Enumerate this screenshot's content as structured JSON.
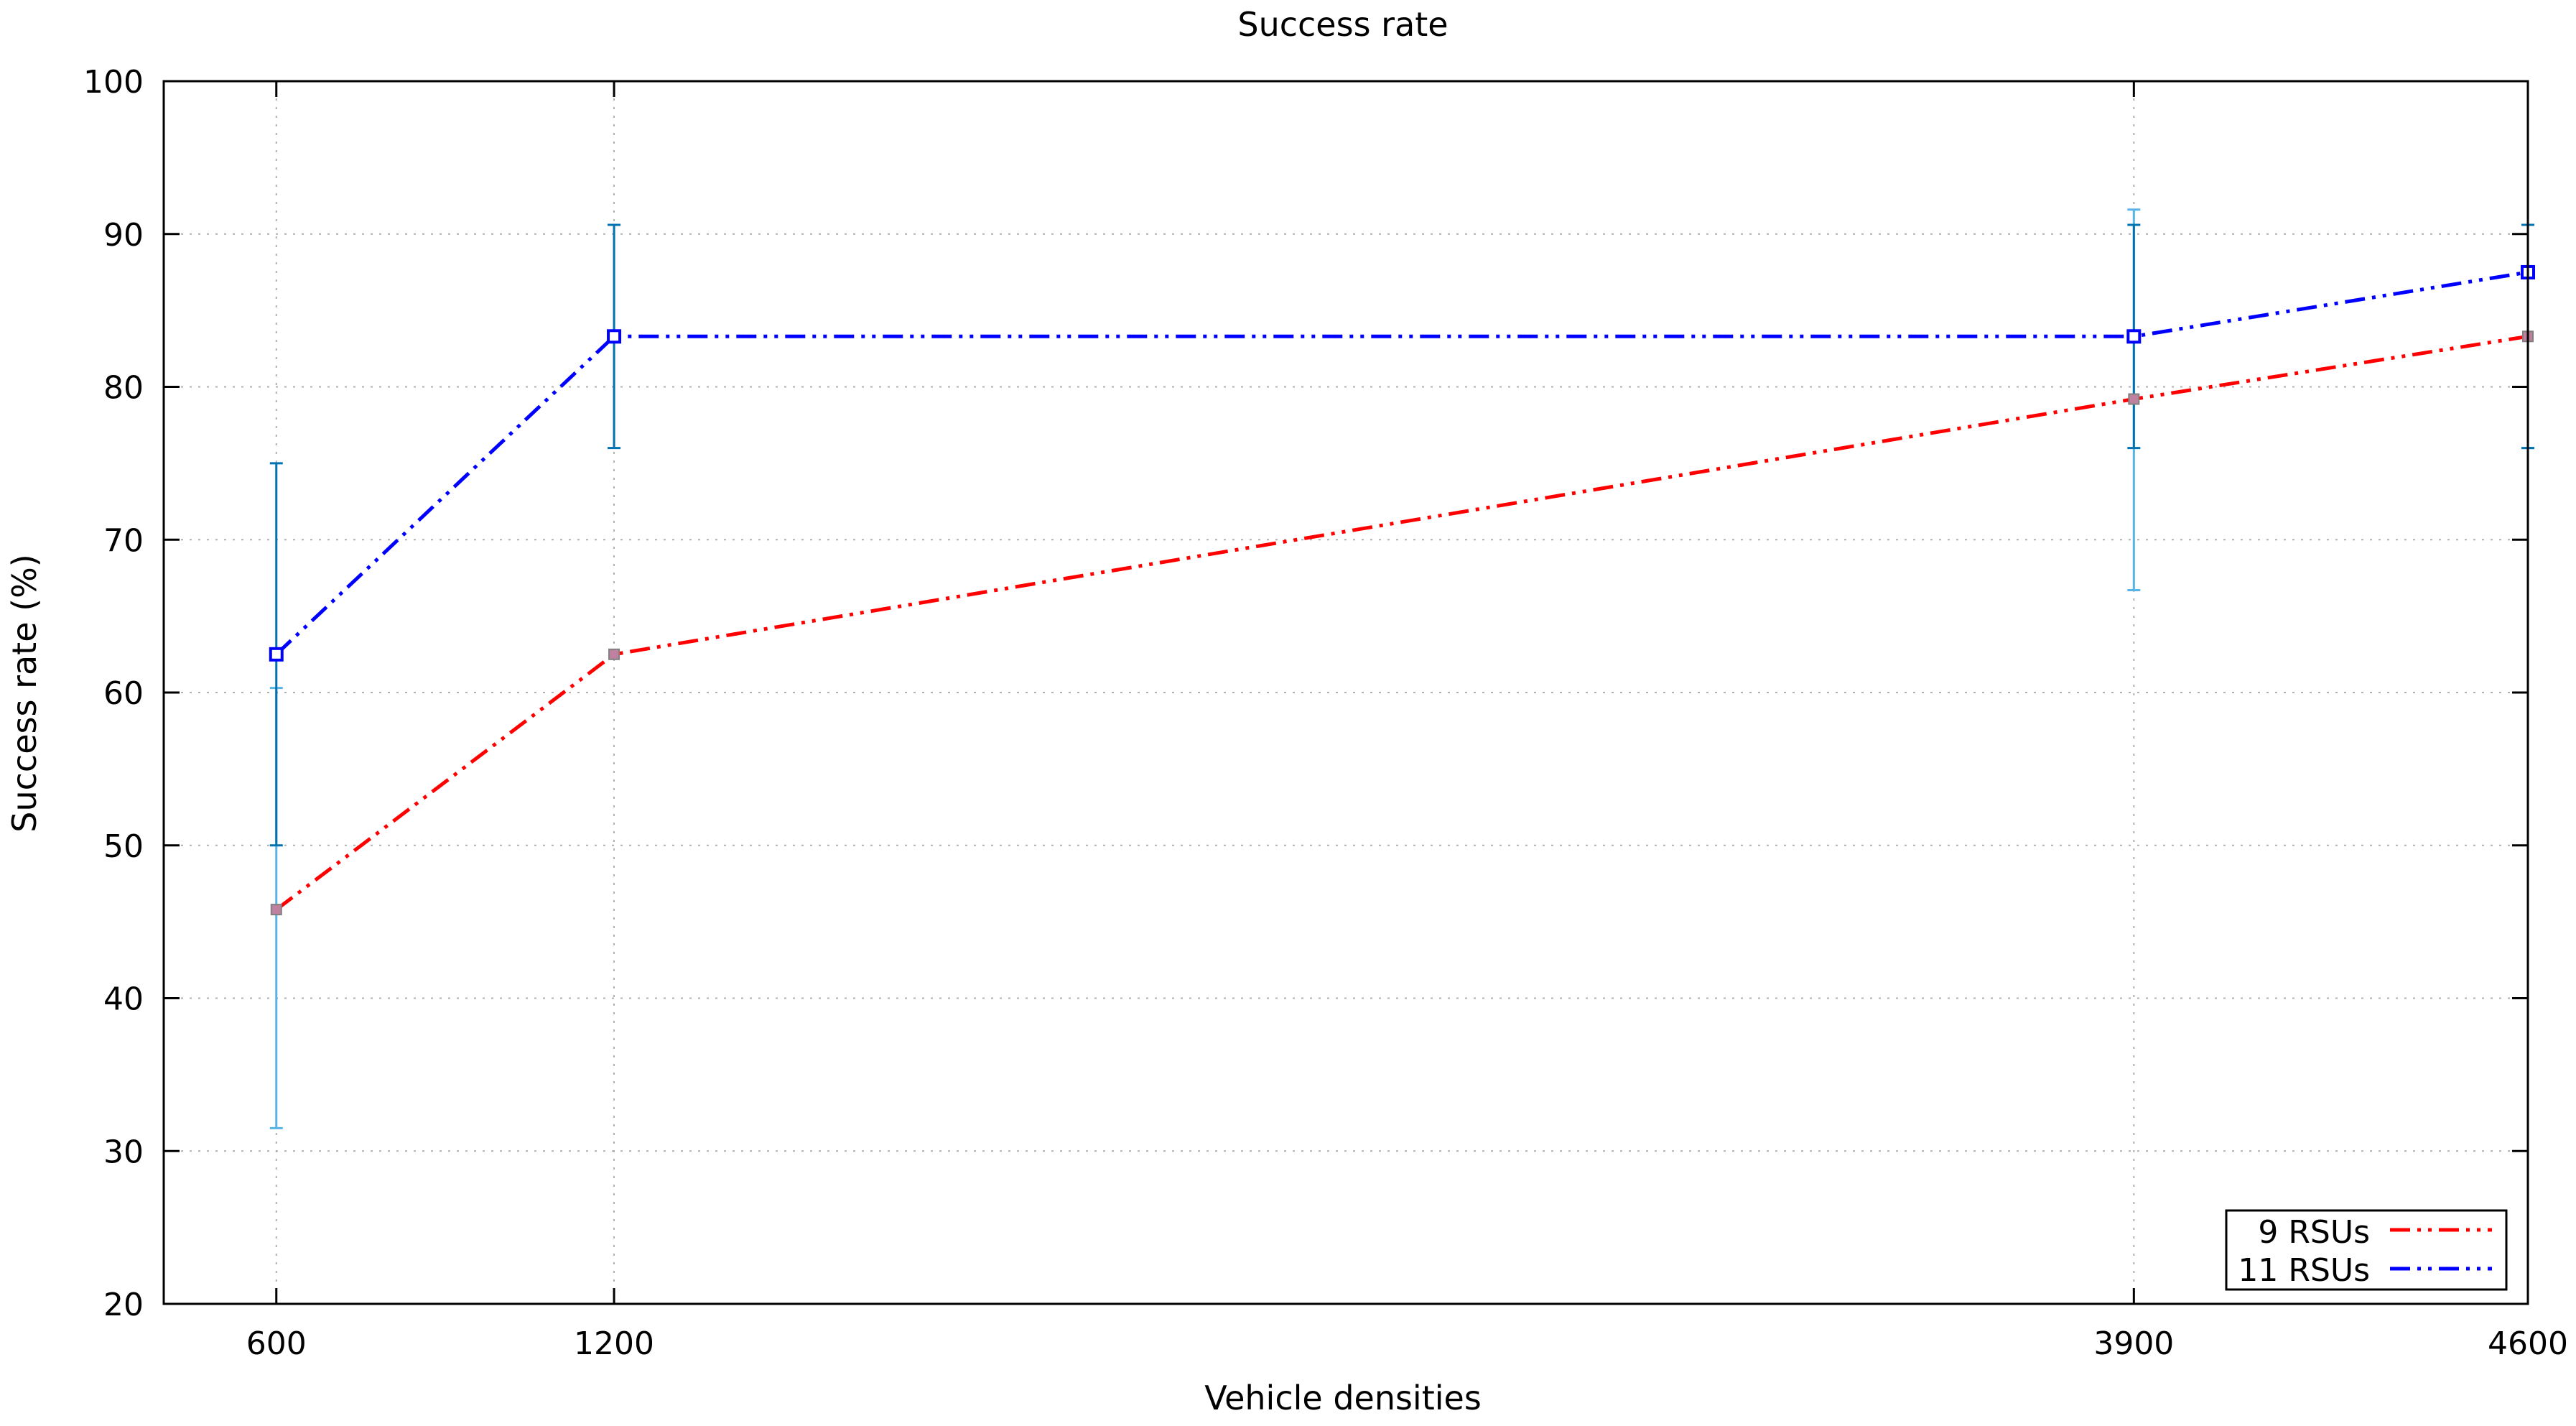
{
  "chart_data": {
    "type": "line",
    "title": "Success rate",
    "xlabel": "Vehicle densities",
    "ylabel": "Success rate (%)",
    "x": [
      600,
      1200,
      3900,
      4600
    ],
    "xlim": [
      400,
      4600
    ],
    "ylim": [
      20,
      100
    ],
    "yticks": [
      20,
      30,
      40,
      50,
      60,
      70,
      80,
      90,
      100
    ],
    "xtick_labels": [
      "600",
      "1200",
      "3900",
      "4600"
    ],
    "grid": true,
    "legend_position": "bottom-right",
    "series": [
      {
        "name": "9 RSUs",
        "color": "#ff0000",
        "values": [
          45.8,
          62.5,
          79.2,
          83.3
        ],
        "error_low": [
          31.5,
          62.5,
          66.7,
          76.0
        ],
        "error_high": [
          60.3,
          62.5,
          91.6,
          90.6
        ],
        "error_color": "#56b4e9"
      },
      {
        "name": "11 RSUs",
        "color": "#0000ff",
        "values": [
          62.5,
          83.3,
          83.3,
          87.5
        ],
        "error_low": [
          50.0,
          76.0,
          76.0,
          76.0
        ],
        "error_high": [
          75.0,
          90.6,
          90.6,
          90.6
        ],
        "error_color": "#0072b2"
      }
    ]
  }
}
